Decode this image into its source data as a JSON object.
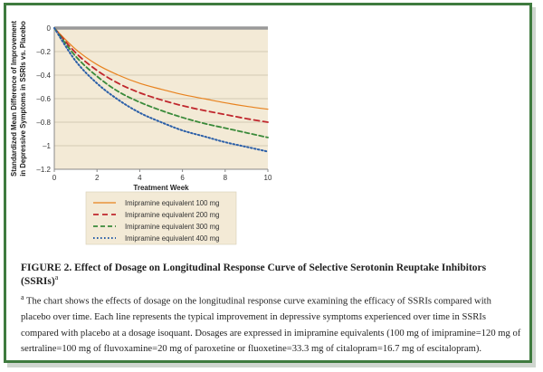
{
  "chart_data": {
    "type": "line",
    "title": "",
    "xlabel": "Treatment Week",
    "ylabel_lines": [
      "Standardized Mean Difference of Improvement",
      "in Depressive Symptoms in SSRIs vs. Placebo"
    ],
    "xlim": [
      0,
      10
    ],
    "ylim": [
      -1.2,
      0
    ],
    "xticks": [
      0,
      2,
      4,
      6,
      8,
      10
    ],
    "yticks": [
      0,
      -0.2,
      -0.4,
      -0.6,
      -0.8,
      -1,
      -1.2
    ],
    "ytick_labels": [
      "0",
      "–0.2",
      "–0.4",
      "–0.6",
      "–0.8",
      "–1",
      "–1.2"
    ],
    "grid": "horizontal",
    "background": "#f3ead6",
    "series": [
      {
        "name": "Imipramine equivalent 100 mg",
        "color": "#e8821e",
        "dash": "solid",
        "x": [
          0,
          1,
          2,
          3,
          4,
          5,
          6,
          7,
          8,
          9,
          10
        ],
        "y": [
          0,
          -0.18,
          -0.31,
          -0.4,
          -0.47,
          -0.52,
          -0.565,
          -0.6,
          -0.635,
          -0.665,
          -0.69
        ]
      },
      {
        "name": "Imipramine equivalent 200 mg",
        "color": "#c0272d",
        "dash": "dashed",
        "x": [
          0,
          1,
          2,
          3,
          4,
          5,
          6,
          7,
          8,
          9,
          10
        ],
        "y": [
          0,
          -0.21,
          -0.36,
          -0.47,
          -0.55,
          -0.61,
          -0.66,
          -0.7,
          -0.735,
          -0.77,
          -0.8
        ]
      },
      {
        "name": "Imipramine equivalent 300 mg",
        "color": "#3a8a3a",
        "dash": "dashed",
        "x": [
          0,
          1,
          2,
          3,
          4,
          5,
          6,
          7,
          8,
          9,
          10
        ],
        "y": [
          0,
          -0.24,
          -0.41,
          -0.54,
          -0.63,
          -0.7,
          -0.76,
          -0.81,
          -0.85,
          -0.89,
          -0.93
        ]
      },
      {
        "name": "Imipramine equivalent 400 mg",
        "color": "#2b5fa8",
        "dash": "dotted",
        "x": [
          0,
          1,
          2,
          3,
          4,
          5,
          6,
          7,
          8,
          9,
          10
        ],
        "y": [
          0,
          -0.28,
          -0.47,
          -0.61,
          -0.72,
          -0.8,
          -0.87,
          -0.92,
          -0.97,
          -1.01,
          -1.05
        ]
      }
    ]
  },
  "caption": {
    "title": "FIGURE 2. Effect of Dosage on Longitudinal Response Curve of Selective Serotonin Reuptake Inhibitors (SSRIs)",
    "title_sup": "a",
    "note_sup": "a",
    "note": "The chart shows the effects of dosage on the longitudinal response curve examining the efficacy of SSRIs compared with placebo over time. Each line represents the typical improvement in depressive symptoms experienced over time in SSRIs compared with placebo at a dosage isoquant. Dosages are expressed in imipramine equivalents (100 mg of imipramine=120 mg of sertraline=100 mg of fluvoxamine=20 mg of paroxetine or fluoxetine=33.3 mg of citalopram=16.7 mg of escitalopram)."
  },
  "colors": {
    "frame": "#3f7b3f",
    "axis": "#999999",
    "legend_bg": "#f3ead6"
  }
}
